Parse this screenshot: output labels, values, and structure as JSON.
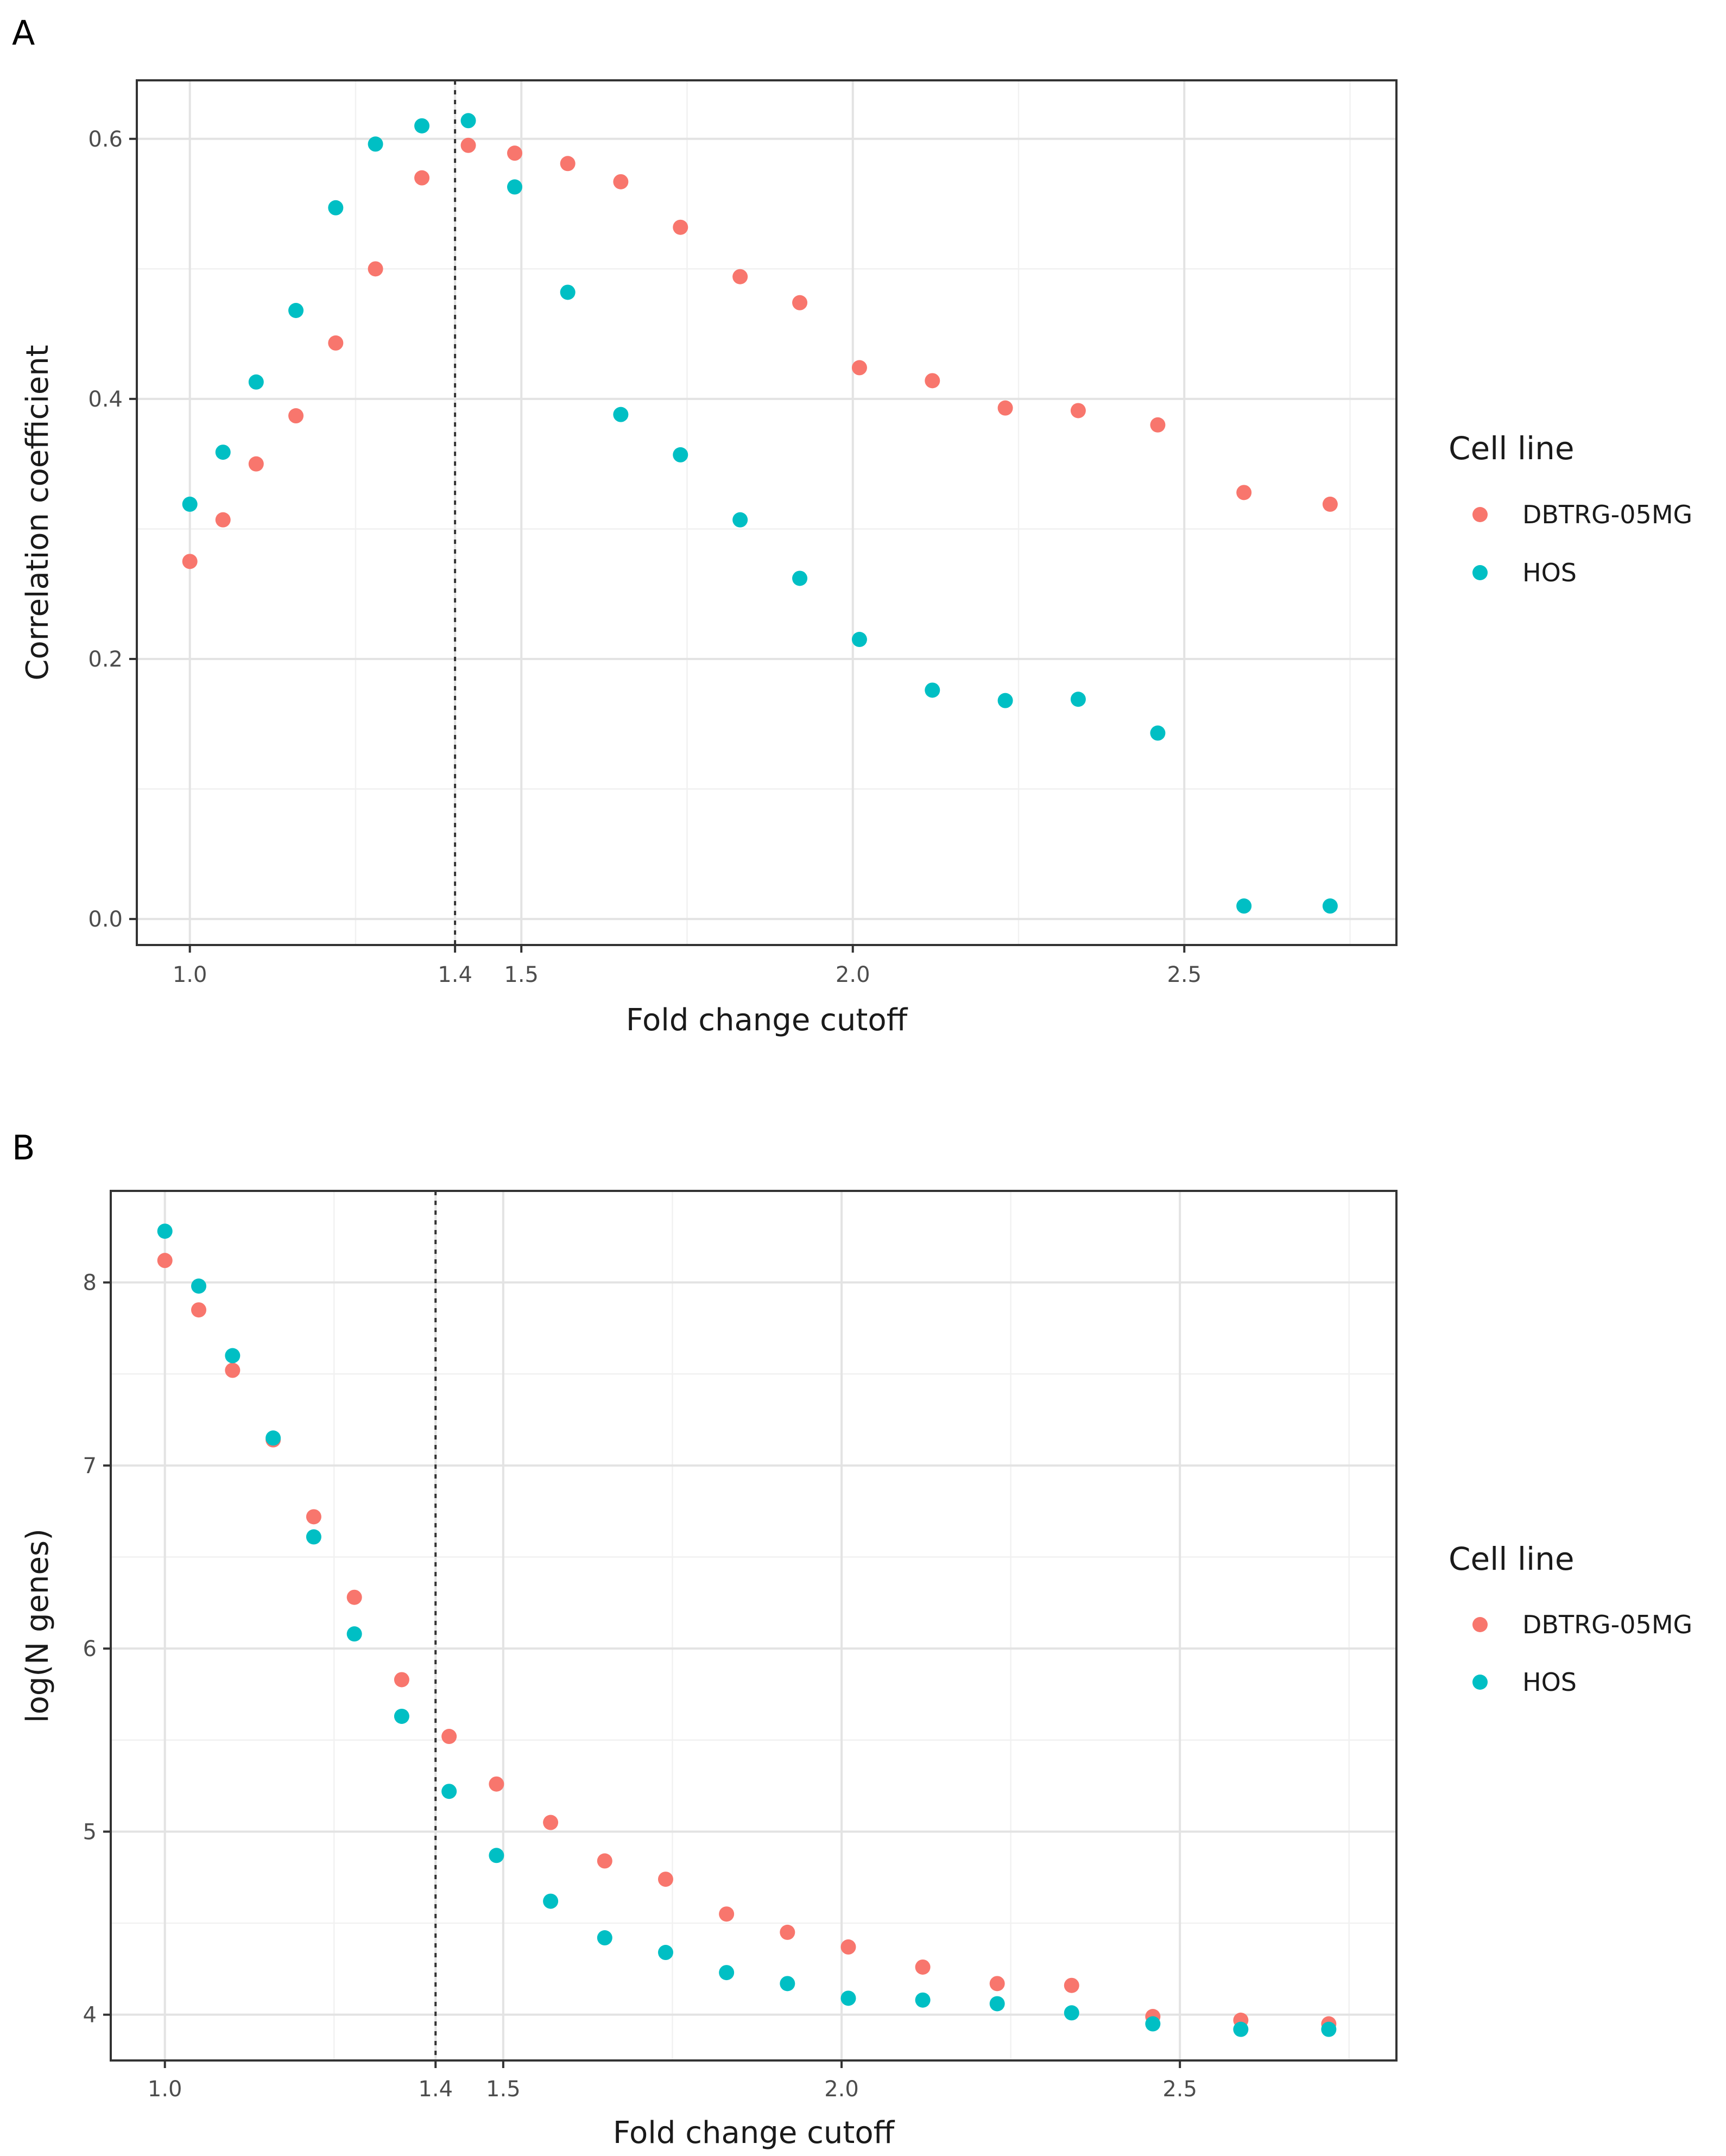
{
  "colors": {
    "series_1": "#F8766D",
    "series_2": "#00BFC4"
  },
  "chart_data": [
    {
      "type": "scatter",
      "panel_label": "A",
      "xlabel": "Fold change cutoff",
      "ylabel": "Correlation coefficient",
      "xlim": [
        0.92,
        2.82
      ],
      "ylim": [
        -0.02,
        0.645
      ],
      "x_ticks": [
        1.0,
        1.4,
        1.5,
        2.0,
        2.5
      ],
      "x_tick_labels": [
        "1.0",
        "1.4",
        "1.5",
        "2.0",
        "2.5"
      ],
      "y_ticks": [
        0.0,
        0.2,
        0.4,
        0.6
      ],
      "y_tick_labels": [
        "0.0",
        "0.2",
        "0.4",
        "0.6"
      ],
      "x_minor_grid": [
        1.25,
        1.75,
        2.25,
        2.75
      ],
      "y_minor_grid": [
        0.1,
        0.3,
        0.5
      ],
      "vline_x": 1.4,
      "grid": true,
      "legend_title": "Cell line",
      "legend_position": "right",
      "x": [
        1.0,
        1.05,
        1.1,
        1.16,
        1.22,
        1.28,
        1.35,
        1.42,
        1.49,
        1.57,
        1.65,
        1.74,
        1.83,
        1.92,
        2.01,
        2.12,
        2.23,
        2.34,
        2.46,
        2.59,
        2.72
      ],
      "series": [
        {
          "name": "DBTRG-05MG",
          "values": [
            0.275,
            0.307,
            0.35,
            0.387,
            0.443,
            0.5,
            0.57,
            0.595,
            0.589,
            0.581,
            0.567,
            0.532,
            0.494,
            0.474,
            0.424,
            0.414,
            0.393,
            0.391,
            0.38,
            0.328,
            0.319
          ]
        },
        {
          "name": "HOS",
          "values": [
            0.319,
            0.359,
            0.413,
            0.468,
            0.547,
            0.596,
            0.61,
            0.614,
            0.563,
            0.482,
            0.388,
            0.357,
            0.307,
            0.262,
            0.215,
            0.176,
            0.168,
            0.169,
            0.143,
            0.01,
            0.01
          ]
        }
      ]
    },
    {
      "type": "scatter",
      "panel_label": "B",
      "xlabel": "Fold change cutoff",
      "ylabel": "log(N genes)",
      "xlim": [
        0.92,
        2.82
      ],
      "ylim": [
        3.75,
        8.5
      ],
      "x_ticks": [
        1.0,
        1.4,
        1.5,
        2.0,
        2.5
      ],
      "x_tick_labels": [
        "1.0",
        "1.4",
        "1.5",
        "2.0",
        "2.5"
      ],
      "y_ticks": [
        4,
        5,
        6,
        7,
        8
      ],
      "y_tick_labels": [
        "4",
        "5",
        "6",
        "7",
        "8"
      ],
      "x_minor_grid": [
        1.25,
        1.75,
        2.25,
        2.75
      ],
      "y_minor_grid": [
        4.5,
        5.5,
        6.5,
        7.5
      ],
      "vline_x": 1.4,
      "grid": true,
      "legend_title": "Cell line",
      "legend_position": "right",
      "x": [
        1.0,
        1.05,
        1.1,
        1.16,
        1.22,
        1.28,
        1.35,
        1.42,
        1.49,
        1.57,
        1.65,
        1.74,
        1.83,
        1.92,
        2.01,
        2.12,
        2.23,
        2.34,
        2.46,
        2.59,
        2.72
      ],
      "series": [
        {
          "name": "DBTRG-05MG",
          "values": [
            8.12,
            7.85,
            7.52,
            7.14,
            6.72,
            6.28,
            5.83,
            5.52,
            5.26,
            5.05,
            4.84,
            4.74,
            4.55,
            4.45,
            4.37,
            4.26,
            4.17,
            4.16,
            3.99,
            3.97,
            3.95
          ]
        },
        {
          "name": "HOS",
          "values": [
            8.28,
            7.98,
            7.6,
            7.15,
            6.61,
            6.08,
            5.63,
            5.22,
            4.87,
            4.62,
            4.42,
            4.34,
            4.23,
            4.17,
            4.09,
            4.08,
            4.06,
            4.01,
            3.95,
            3.92,
            3.92
          ]
        }
      ]
    }
  ]
}
